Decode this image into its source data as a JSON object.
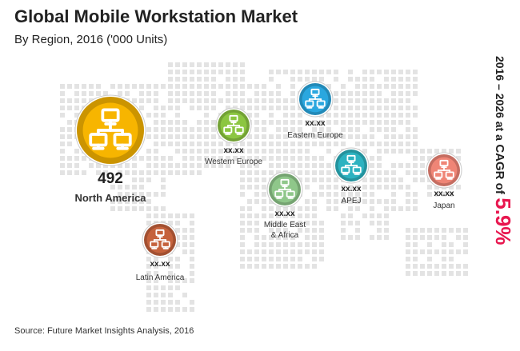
{
  "title": "Global Mobile Workstation Market",
  "subtitle": "By Region, 2016 ('000 Units)",
  "cagr": {
    "years": "2016 – 2026 at a",
    "label": "CAGR of",
    "value": "5.9%"
  },
  "source": "Source: Future Market Insights Analysis, 2016",
  "chart_data": {
    "type": "bubble-map",
    "title": "Global Mobile Workstation Market",
    "subtitle": "By Region, 2016 ('000 Units)",
    "regions": [
      {
        "name": "North America",
        "value_label": "492",
        "value": 492,
        "color": "#f7b500"
      },
      {
        "name": "Western Europe",
        "value_label": "xx.xx",
        "value": null,
        "color": "#8cc641"
      },
      {
        "name": "Eastern Europe",
        "value_label": "xx.xx",
        "value": null,
        "color": "#2aa7df"
      },
      {
        "name": "Middle East & Africa",
        "value_label": "xx.xx",
        "value": null,
        "color": "#8fc78a"
      },
      {
        "name": "APEJ",
        "value_label": "xx.xx",
        "value": null,
        "color": "#2cb2c0"
      },
      {
        "name": "Japan",
        "value_label": "xx.xx",
        "value": null,
        "color": "#ef8576"
      },
      {
        "name": "Latin America",
        "value_label": "xx.xx",
        "value": null,
        "color": "#c5623c"
      }
    ]
  }
}
